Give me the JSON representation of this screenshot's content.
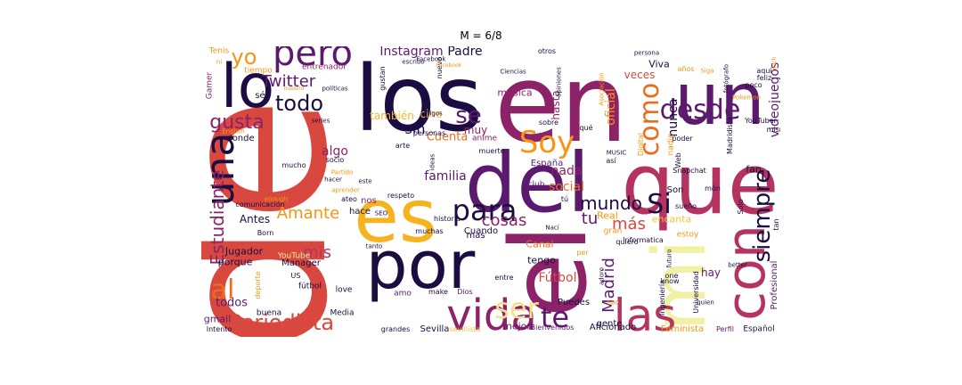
{
  "title": "M = 6/8",
  "palette": {
    "dark": "#1b0c41",
    "purple": "#5c1a6e",
    "magenta": "#8c2369",
    "rose": "#b43360",
    "red": "#d9483e",
    "orange": "#ea6d1e",
    "amber": "#f79511",
    "yellow": "#f6c341",
    "pale": "#f1f1a3"
  },
  "words": [
    {
      "text": "de",
      "color": "#d9483e"
    },
    {
      "text": "en",
      "color": "#8c2369"
    },
    {
      "text": "los",
      "color": "#1b0c41"
    },
    {
      "text": "un",
      "color": "#5c1a6e"
    },
    {
      "text": "que",
      "color": "#b43360"
    },
    {
      "text": "del",
      "color": "#5c1a6e"
    },
    {
      "text": "lo",
      "color": "#1b0c41"
    },
    {
      "text": "es",
      "color": "#f6b31f"
    },
    {
      "text": "el",
      "color": "#8c2369"
    },
    {
      "text": "mi",
      "color": "#f1f1a3"
    },
    {
      "text": "por",
      "color": "#1b0c41"
    },
    {
      "text": "con",
      "color": "#b43360"
    },
    {
      "text": "vida",
      "color": "#8c2369"
    },
    {
      "text": "las",
      "color": "#b43360"
    },
    {
      "text": "una",
      "color": "#1b0c41"
    },
    {
      "text": "pero",
      "color": "#5c1a6e"
    },
    {
      "text": "para",
      "color": "#1b0c41"
    },
    {
      "text": "Soy",
      "color": "#f79511"
    },
    {
      "text": "siempre",
      "color": "#1b0c41"
    },
    {
      "text": "desde",
      "color": "#5c1a6e"
    },
    {
      "text": "como",
      "color": "#ea6d1e"
    },
    {
      "text": "te",
      "color": "#5c1a6e"
    },
    {
      "text": "ser",
      "color": "#f6e08e"
    },
    {
      "text": "al",
      "color": "#ea6d1e"
    },
    {
      "text": "Periodista",
      "color": "#d9483e"
    },
    {
      "text": "Si",
      "color": "#1b0c41"
    },
    {
      "text": "se",
      "color": "#5c1a6e"
    },
    {
      "text": "todo",
      "color": "#1b0c41"
    },
    {
      "text": "yo",
      "color": "#f79511"
    },
    {
      "text": "gusta",
      "color": "#8c2369"
    },
    {
      "text": "Estudiante",
      "color": "#8c2369"
    },
    {
      "text": "Amante",
      "color": "#f79511"
    },
    {
      "text": "Twitter",
      "color": "#5c1a6e"
    },
    {
      "text": "Madrid",
      "color": "#5c1a6e"
    },
    {
      "text": "mundo",
      "color": "#1b0c41"
    },
    {
      "text": "más",
      "color": "#d9483e"
    },
    {
      "text": "cosas",
      "color": "#8c2369"
    },
    {
      "text": "mis",
      "color": "#b43360"
    },
    {
      "text": "sin",
      "color": "#1b0c41"
    },
    {
      "text": "tu",
      "color": "#5c1a6e"
    },
    {
      "text": "Instagram",
      "color": "#5c1a6e"
    },
    {
      "text": "Padre",
      "color": "#1b0c41"
    },
    {
      "text": "videojuegos",
      "color": "#5c1a6e"
    },
    {
      "text": "nunca",
      "color": "#1b0c41"
    },
    {
      "text": "oficial",
      "color": "#f79511"
    },
    {
      "text": "nada",
      "color": "#8c2369"
    },
    {
      "text": "social",
      "color": "#ea6d1e"
    },
    {
      "text": "familia",
      "color": "#5c1a6e"
    },
    {
      "text": "Fútbol",
      "color": "#d9483e"
    },
    {
      "text": "algo",
      "color": "#8c2369"
    },
    {
      "text": "Cuenta",
      "color": "#ea6d1e"
    },
    {
      "text": "también",
      "color": "#f1b72b"
    },
    {
      "text": "cine",
      "color": "#f6c341"
    },
    {
      "text": "muy",
      "color": "#8c2369"
    },
    {
      "text": "Profesional",
      "color": "#5c1a6e"
    },
    {
      "text": "hay",
      "color": "#5c1a6e"
    },
    {
      "text": "todos",
      "color": "#5c1a6e"
    },
    {
      "text": "gmail",
      "color": "#5c1a6e"
    },
    {
      "text": "Jugador",
      "color": "#1b0c41"
    },
    {
      "text": "porque",
      "color": "#1b0c41"
    },
    {
      "text": "Antes",
      "color": "#1b0c41"
    },
    {
      "text": "veces",
      "color": "#d9483e"
    },
    {
      "text": "Viva",
      "color": "#1b0c41"
    },
    {
      "text": "música",
      "color": "#8c2369"
    },
    {
      "text": "hasta",
      "color": "#8c2369"
    },
    {
      "text": "Canal",
      "color": "#ea6d1e"
    },
    {
      "text": "tengo",
      "color": "#1b0c41"
    },
    {
      "text": "mejor",
      "color": "#5c1a6e"
    },
    {
      "text": "Manager",
      "color": "#1b0c41"
    },
    {
      "text": "Son",
      "color": "#1b0c41"
    },
    {
      "text": "fan",
      "color": "#1b0c41"
    },
    {
      "text": "encanta",
      "color": "#f6c341"
    },
    {
      "text": "Real",
      "color": "#f79511"
    },
    {
      "text": "Cuando",
      "color": "#1b0c41"
    },
    {
      "text": "mas",
      "color": "#1b0c41"
    },
    {
      "text": "donde",
      "color": "#1b0c41"
    },
    {
      "text": "hace",
      "color": "#1b0c41"
    },
    {
      "text": "nos",
      "color": "#8c2369"
    },
    {
      "text": "Sevilla",
      "color": "#1b0c41"
    },
    {
      "text": "Puedes",
      "color": "#1b0c41"
    },
    {
      "text": "España",
      "color": "#5c1a6e"
    },
    {
      "text": "Aficionado",
      "color": "#1b0c41"
    },
    {
      "text": "Feminista",
      "color": "#f79511"
    },
    {
      "text": "Español",
      "color": "#1b0c41"
    },
    {
      "text": "gente",
      "color": "#1b0c41"
    },
    {
      "text": "Media",
      "color": "#1b0c41"
    },
    {
      "text": "Tenis",
      "color": "#f79511"
    },
    {
      "text": "tiempo",
      "color": "#f79511"
    },
    {
      "text": "entrenador",
      "color": "#8c2369"
    },
    {
      "text": "Gamer",
      "color": "#8c2369"
    },
    {
      "text": "sé",
      "color": "#1b0c41"
    },
    {
      "text": "YouTube",
      "color": "#f1f1a3"
    },
    {
      "text": "love",
      "color": "#1b0c41"
    },
    {
      "text": "fútbol",
      "color": "#1b0c41"
    },
    {
      "text": "buena",
      "color": "#1b0c41"
    },
    {
      "text": "Intento",
      "color": "#1b0c41"
    },
    {
      "text": "grandes",
      "color": "#1b0c41"
    },
    {
      "text": "sevillista",
      "color": "#f6c341"
    },
    {
      "text": "Bienvenidos",
      "color": "#5c1a6e"
    },
    {
      "text": "Perfil",
      "color": "#5c1a6e"
    },
    {
      "text": "amo",
      "color": "#5c1a6e"
    },
    {
      "text": "make",
      "color": "#1b0c41"
    },
    {
      "text": "Dios",
      "color": "#5c1a6e"
    },
    {
      "text": "entre",
      "color": "#1b0c41"
    },
    {
      "text": "anime",
      "color": "#8c2369"
    },
    {
      "text": "club",
      "color": "#5c1a6e"
    },
    {
      "text": "quiero",
      "color": "#1b0c41"
    },
    {
      "text": "así",
      "color": "#1b0c41"
    },
    {
      "text": "poder",
      "color": "#1b0c41"
    },
    {
      "text": "sueño",
      "color": "#1b0c41"
    },
    {
      "text": "Snapchat",
      "color": "#1b0c41"
    },
    {
      "text": "Solo",
      "color": "#1b0c41"
    },
    {
      "text": "tan",
      "color": "#1b0c41"
    },
    {
      "text": "muchas",
      "color": "#1b0c41"
    },
    {
      "text": "historia",
      "color": "#1b0c41"
    },
    {
      "text": "respeto",
      "color": "#1b0c41"
    },
    {
      "text": "arte",
      "color": "#1b0c41"
    },
    {
      "text": "muerte",
      "color": "#1b0c41"
    },
    {
      "text": "comunicación",
      "color": "#1b0c41"
    },
    {
      "text": "mucho",
      "color": "#1b0c41"
    },
    {
      "text": "socio",
      "color": "#1b0c41"
    },
    {
      "text": "Born",
      "color": "#1b0c41"
    },
    {
      "text": "ateo",
      "color": "#1b0c41"
    },
    {
      "text": "Informatica",
      "color": "#1b0c41"
    },
    {
      "text": "Universidad",
      "color": "#1b0c41"
    },
    {
      "text": "Ingeniería",
      "color": "#1b0c41"
    },
    {
      "text": "Madridista",
      "color": "#1b0c41"
    },
    {
      "text": "Digital",
      "color": "#f79511"
    },
    {
      "text": "Web",
      "color": "#1b0c41"
    },
    {
      "text": "nadie",
      "color": "#f79511"
    },
    {
      "text": "YouTuber",
      "color": "#1b0c41"
    },
    {
      "text": "mismo",
      "color": "#1b0c41"
    },
    {
      "text": "feliz",
      "color": "#1b0c41"
    },
    {
      "text": "aquí",
      "color": "#1b0c41"
    },
    {
      "text": "poco",
      "color": "#1b0c41"
    },
    {
      "text": "años",
      "color": "#f79511"
    },
    {
      "text": "persona",
      "color": "#1b0c41"
    },
    {
      "text": "otros",
      "color": "#1b0c41"
    },
    {
      "text": "Facebook",
      "color": "#1b0c41"
    },
    {
      "text": "nuevo",
      "color": "#1b0c41"
    },
    {
      "text": "escribo",
      "color": "#1b0c41"
    },
    {
      "text": "políticas",
      "color": "#1b0c41"
    },
    {
      "text": "life",
      "color": "#1b0c41"
    },
    {
      "text": "gustan",
      "color": "#1b0c41"
    },
    {
      "text": "Ciencias",
      "color": "#1b0c41"
    },
    {
      "text": "opiniones",
      "color": "#1b0c41"
    },
    {
      "text": "Asociación",
      "color": "#f79511"
    },
    {
      "text": "fotógrafo",
      "color": "#1b0c41"
    },
    {
      "text": "series",
      "color": "#1b0c41"
    },
    {
      "text": "English",
      "color": "#f79511"
    },
    {
      "text": "amigos",
      "color": "#1b0c41"
    },
    {
      "text": "personas",
      "color": "#1b0c41"
    },
    {
      "text": "sobre",
      "color": "#1b0c41"
    },
    {
      "text": "qué",
      "color": "#1b0c41"
    },
    {
      "text": "MUSIC",
      "color": "#1b0c41"
    },
    {
      "text": "este",
      "color": "#1b0c41"
    },
    {
      "text": "ideas",
      "color": "#1b0c41"
    },
    {
      "text": "Partido",
      "color": "#f79511"
    },
    {
      "text": "hacer",
      "color": "#1b0c41"
    },
    {
      "text": "enough",
      "color": "#f79511"
    },
    {
      "text": "aprender",
      "color": "#f79511"
    },
    {
      "text": "SEO",
      "color": "#1b0c41"
    },
    {
      "text": "tanto",
      "color": "#1b0c41"
    },
    {
      "text": "US",
      "color": "#1b0c41"
    },
    {
      "text": "deporte",
      "color": "#f79511"
    },
    {
      "text": "Nací",
      "color": "#1b0c41"
    },
    {
      "text": "gran",
      "color": "#f79511"
    },
    {
      "text": "estoy",
      "color": "#f79511"
    },
    {
      "text": "futuro",
      "color": "#1b0c41"
    },
    {
      "text": "one",
      "color": "#1b0c41"
    },
    {
      "text": "know",
      "color": "#1b0c41"
    },
    {
      "text": "better",
      "color": "#1b0c41"
    },
    {
      "text": "quien",
      "color": "#1b0c41"
    },
    {
      "text": "tipo",
      "color": "#f79511"
    },
    {
      "text": "adoro",
      "color": "#1b0c41"
    },
    {
      "text": "per",
      "color": "#f79511"
    },
    {
      "text": "mòn",
      "color": "#1b0c41"
    },
    {
      "text": "tú",
      "color": "#1b0c41"
    },
    {
      "text": "much",
      "color": "#f79511"
    },
    {
      "text": "Siga",
      "color": "#f79511"
    },
    {
      "text": "Pokemon",
      "color": "#f79511"
    },
    {
      "text": "Facebook",
      "color": "#f79511"
    },
    {
      "text": "nuestro",
      "color": "#f79511"
    },
    {
      "text": "ni",
      "color": "#f79511"
    }
  ]
}
